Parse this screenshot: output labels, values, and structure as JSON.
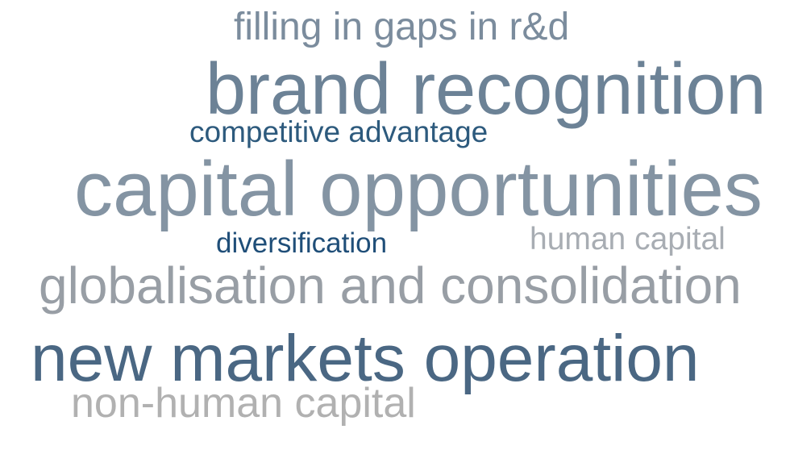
{
  "words": [
    {
      "text": "filling in gaps in r&d",
      "color": "#7b8c9d"
    },
    {
      "text": "brand recognition",
      "color": "#6c8296"
    },
    {
      "text": "competitive advantage",
      "color": "#2d5a7d"
    },
    {
      "text": "capital opportunities",
      "color": "#8494a3"
    },
    {
      "text": "diversification",
      "color": "#1f4e78"
    },
    {
      "text": "human capital",
      "color": "#a8adb3"
    },
    {
      "text": "globalisation and consolidation",
      "color": "#989ea5"
    },
    {
      "text": "new markets operation",
      "color": "#4a6783"
    },
    {
      "text": "non-human capital",
      "color": "#b1b1b1"
    }
  ]
}
